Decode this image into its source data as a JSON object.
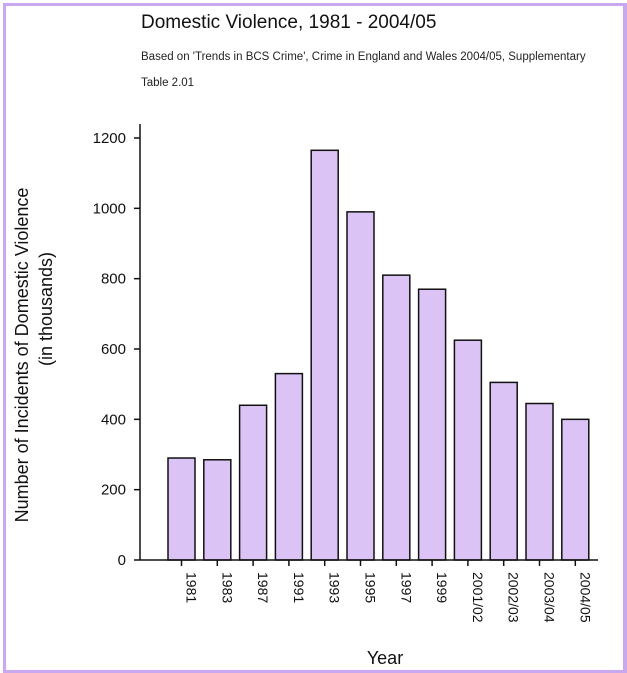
{
  "chart_data": {
    "type": "bar",
    "title": "Domestic Violence, 1981 - 2004/05",
    "subtitle": "Based on 'Trends in BCS Crime', Crime in England and Wales 2004/05, Supplementary Table 2.01",
    "xlabel": "Year",
    "ylabel": "Number of Incidents of Domestic Violence",
    "ylabel_sub": "(in thousands)",
    "categories": [
      "1981",
      "1983",
      "1987",
      "1991",
      "1993",
      "1995",
      "1997",
      "1999",
      "2001/02",
      "2002/03",
      "2003/04",
      "2004/05"
    ],
    "values": [
      290,
      285,
      440,
      530,
      1165,
      990,
      810,
      770,
      625,
      505,
      445,
      400
    ],
    "ylim": [
      0,
      1200
    ],
    "yticks": [
      0,
      200,
      400,
      600,
      800,
      1000,
      1200
    ],
    "grid": false,
    "legend": "none",
    "bar_color": "#dcc3f5",
    "bar_edge_color": "#111111"
  }
}
